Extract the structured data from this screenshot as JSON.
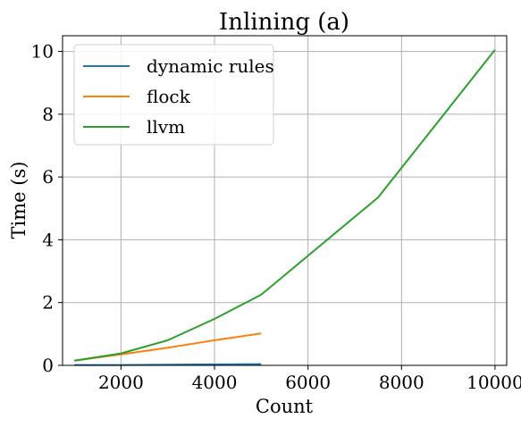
{
  "chart_data": {
    "type": "line",
    "title": "Inlining (a)",
    "xlabel": "Count",
    "ylabel": "Time (s)",
    "xlim": [
      750,
      10250
    ],
    "ylim": [
      0,
      10.5
    ],
    "xticks": [
      2000,
      4000,
      6000,
      8000,
      10000
    ],
    "yticks": [
      0,
      2,
      4,
      6,
      8,
      10
    ],
    "grid": true,
    "legend_position": "top-left",
    "series": [
      {
        "name": "dynamic rules",
        "color": "#1f77b4",
        "x": [
          1000,
          2000,
          3000,
          4000,
          5000
        ],
        "y": [
          0.01,
          0.01,
          0.02,
          0.03,
          0.04
        ]
      },
      {
        "name": "flock",
        "color": "#ff7f0e",
        "x": [
          1000,
          2000,
          3000,
          4000,
          5000
        ],
        "y": [
          0.15,
          0.35,
          0.56,
          0.8,
          1.02
        ]
      },
      {
        "name": "llvm",
        "color": "#2ca02c",
        "x": [
          1000,
          2000,
          3000,
          4000,
          5000,
          7500,
          10000
        ],
        "y": [
          0.15,
          0.38,
          0.8,
          1.48,
          2.25,
          5.35,
          10.05
        ]
      }
    ]
  }
}
